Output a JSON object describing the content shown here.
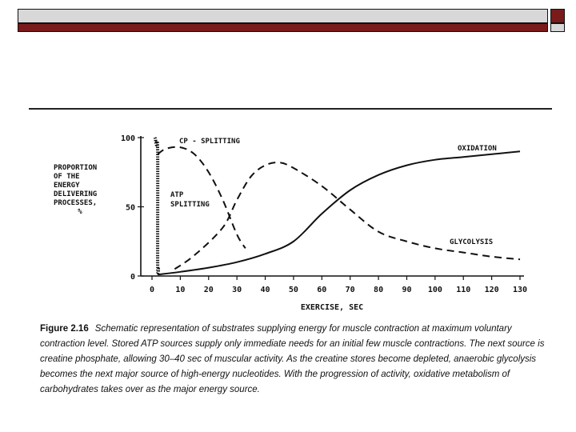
{
  "slide": {
    "frame_colors": {
      "bar_gray": "#d8d8d8",
      "bar_red": "#7a1a1a"
    }
  },
  "chart_data": {
    "type": "line",
    "ylabel_lines": [
      "PROPORTION",
      "OF THE",
      "ENERGY",
      "DELIVERING",
      "PROCESSES,",
      "%"
    ],
    "xlabel": "EXERCISE, SEC",
    "xlim": [
      0,
      130
    ],
    "ylim": [
      0,
      100
    ],
    "x_ticks": [
      0,
      10,
      20,
      30,
      40,
      50,
      60,
      70,
      80,
      90,
      100,
      110,
      120,
      130
    ],
    "x_tick_labels": [
      "0",
      "10",
      "20",
      "30",
      "40",
      "50",
      "60",
      "70",
      "80",
      "90",
      "100",
      "110",
      "120",
      "130"
    ],
    "y_ticks": [
      0,
      50,
      100
    ],
    "y_tick_labels": [
      "0",
      "50",
      "100"
    ],
    "series": [
      {
        "name": "ATP SPLITTING",
        "label_lines": [
          "ATP",
          "SPLITTING"
        ],
        "style": "dotted-thick",
        "x": [
          1,
          1.2,
          1.5,
          2,
          2,
          2.3
        ],
        "y": [
          100,
          99,
          95,
          90,
          10,
          5
        ]
      },
      {
        "name": "CP - SPLITTING",
        "label_lines": [
          "CP - SPLITTING"
        ],
        "style": "dashed",
        "x": [
          2,
          5,
          10,
          15,
          20,
          25,
          30,
          33
        ],
        "y": [
          88,
          92,
          93,
          88,
          75,
          55,
          30,
          20
        ]
      },
      {
        "name": "GLYCOLYSIS",
        "label_lines": [
          "GLYCOLYSIS"
        ],
        "style": "dashed",
        "x": [
          8,
          15,
          25,
          30,
          35,
          40,
          45,
          50,
          60,
          70,
          80,
          90,
          100,
          110,
          120,
          130
        ],
        "y": [
          5,
          15,
          35,
          55,
          72,
          80,
          82,
          78,
          65,
          48,
          32,
          25,
          20,
          17,
          14,
          12
        ]
      },
      {
        "name": "OXIDATION",
        "label_lines": [
          "OXIDATION"
        ],
        "style": "solid",
        "x": [
          2,
          10,
          20,
          30,
          40,
          50,
          60,
          70,
          80,
          90,
          100,
          110,
          120,
          130
        ],
        "y": [
          1,
          3,
          6,
          10,
          16,
          25,
          45,
          62,
          73,
          80,
          84,
          86,
          88,
          90
        ]
      }
    ]
  },
  "caption": {
    "figure_label": "Figure 2.16",
    "text": "Schematic representation of substrates supplying energy for muscle contraction at maximum voluntary contraction level. Stored ATP sources supply only immediate needs for an initial few muscle contractions. The next source is creatine phosphate, allowing 30–40 sec of muscular activity. As the creatine stores become depleted, anaerobic glycolysis becomes the next major source of high-energy nucleotides. With the progression of activity, oxidative metabolism of carbohydrates takes over as the major energy source."
  }
}
